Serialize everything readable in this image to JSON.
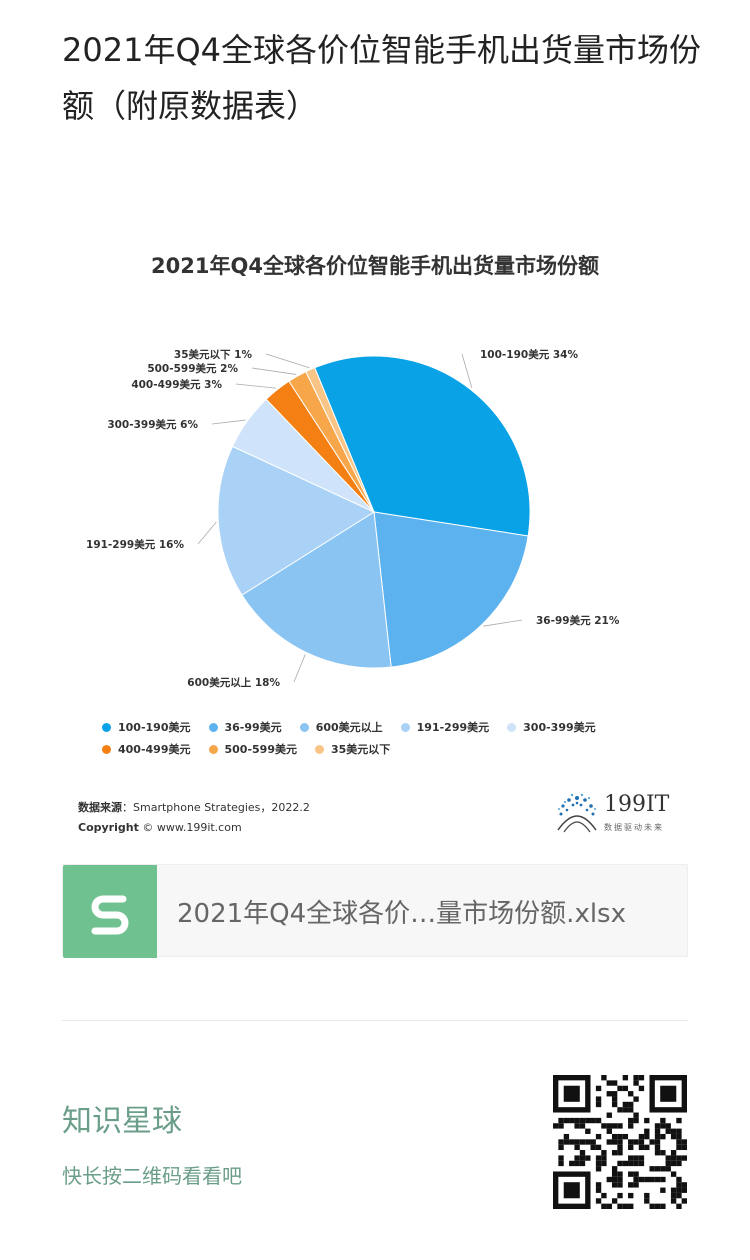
{
  "post": {
    "title": "2021年Q4全球各价位智能手机出货量市场份额（附原数据表）"
  },
  "chart_data": {
    "type": "pie",
    "title": "2021年Q4全球各价位智能手机出货量市场份额",
    "categories": [
      "100-190美元",
      "36-99美元",
      "600美元以上",
      "191-299美元",
      "300-399美元",
      "400-499美元",
      "500-599美元",
      "35美元以下"
    ],
    "values": [
      34,
      21,
      18,
      16,
      6,
      3,
      2,
      1
    ],
    "unit": "%",
    "colors": [
      "#0aa2e6",
      "#5bb2ee",
      "#8ac4f3",
      "#a9d2f6",
      "#cfe4fa",
      "#f47f12",
      "#f7a64a",
      "#f9c586"
    ],
    "data_labels": [
      "100-190美元 34%",
      "36-99美元 21%",
      "600美元以上 18%",
      "191-299美元 16%",
      "300-399美元 6%",
      "400-499美元 3%",
      "500-599美元 2%",
      "35美元以下 1%"
    ],
    "legend_position": "bottom",
    "source_label": "数据来源",
    "source_text": "：Smartphone Strategies，2022.2",
    "copyright_label": "Copyright",
    "copyright_text": "© www.199it.com",
    "brand_name": "199IT",
    "brand_slogan": "数据驱动未来"
  },
  "file": {
    "name": "2021年Q4全球各价…量市场份额.xlsx",
    "icon": "spreadsheet-s-icon",
    "icon_color": "#6fc28f"
  },
  "footer": {
    "planet_name": "知识星球",
    "hint": "快长按二维码看看吧",
    "qr_icon": "qr-code-icon"
  }
}
